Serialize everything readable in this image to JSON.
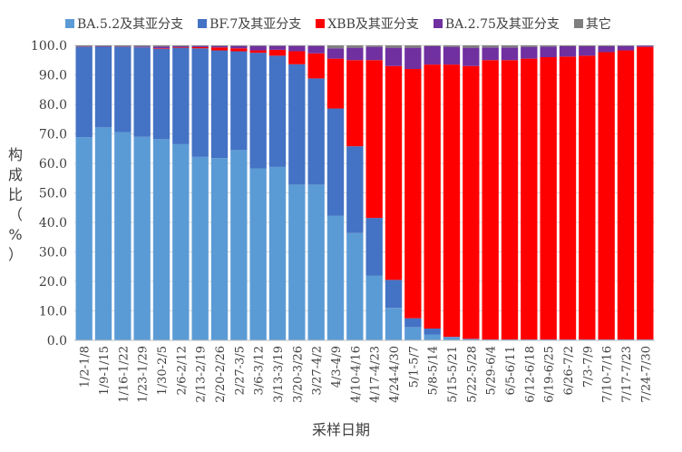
{
  "chart_data": {
    "type": "bar",
    "stacked": true,
    "categories": [
      "1/2-1/8",
      "1/9-1/15",
      "1/16-1/22",
      "1/23-1/29",
      "1/30-2/5",
      "2/6-2/12",
      "2/13-2/19",
      "2/20-2/26",
      "2/27-3/5",
      "3/6-3/12",
      "3/13-3/19",
      "3/20-3/26",
      "3/27-4/2",
      "4/3-4/9",
      "4/10-4/16",
      "4/17-4/23",
      "4/24-4/30",
      "5/1-5/7",
      "5/8-5/14",
      "5/15-5/21",
      "5/22-5/28",
      "5/29-6/4",
      "6/5-6/11",
      "6/12-6/18",
      "6/19-6/25",
      "6/26-7/2",
      "7/3-7/9",
      "7/10-7/16",
      "7/17-7/23",
      "7/24-7/30"
    ],
    "series": [
      {
        "name": "BA.5.2及其亚分支",
        "color": "#5B9BD5",
        "values": [
          68.9,
          72.2,
          70.6,
          69.0,
          68.2,
          66.5,
          62.2,
          61.8,
          64.5,
          58.3,
          58.8,
          52.8,
          52.8,
          42.3,
          36.4,
          22.0,
          11.0,
          4.5,
          2.0,
          1.0,
          0.5,
          0.3,
          0.3,
          0.3,
          0.3,
          0.3,
          0.3,
          0.3,
          0.3,
          0.3
        ]
      },
      {
        "name": "BF.7及其亚分支",
        "color": "#4472C4",
        "values": [
          30.5,
          27.3,
          28.8,
          30.3,
          30.6,
          32.7,
          36.8,
          36.5,
          33.5,
          39.2,
          37.7,
          40.8,
          36.0,
          36.3,
          29.4,
          19.5,
          9.5,
          3.0,
          2.0,
          0.2,
          0,
          0,
          0,
          0,
          0,
          0,
          0,
          0,
          0,
          0
        ]
      },
      {
        "name": "XBB及其亚分支",
        "color": "#FF0000",
        "values": [
          0.0,
          0.0,
          0.0,
          0.0,
          0.2,
          0.2,
          0.4,
          1.0,
          1.0,
          0.8,
          2.0,
          4.4,
          8.5,
          16.9,
          29.2,
          53.5,
          72.5,
          84.5,
          89.5,
          92.3,
          92.5,
          94.7,
          94.7,
          95.2,
          95.7,
          95.9,
          96.2,
          97.4,
          98.0,
          99.2
        ]
      },
      {
        "name": "BA.2.75及其亚分支",
        "color": "#7030A0",
        "values": [
          0.2,
          0.2,
          0.2,
          0.3,
          0.6,
          0.3,
          0.4,
          0.5,
          0.8,
          1.5,
          1.3,
          1.8,
          2.5,
          3.5,
          4.2,
          4.5,
          6.2,
          7.2,
          6.2,
          6.0,
          6.2,
          4.3,
          4.3,
          4.0,
          3.6,
          3.5,
          3.2,
          2.0,
          1.5,
          0.4
        ]
      },
      {
        "name": "其它",
        "color": "#7F7F7F",
        "values": [
          0.4,
          0.3,
          0.4,
          0.4,
          0.4,
          0.3,
          0.2,
          0.2,
          0.2,
          0.2,
          0.2,
          0.2,
          0.2,
          1.0,
          0.8,
          0.5,
          0.8,
          0.8,
          0.3,
          0.5,
          0.8,
          0.7,
          0.7,
          0.5,
          0.4,
          0.3,
          0.3,
          0.3,
          0.2,
          0.1
        ]
      }
    ],
    "xlabel": "采样日期",
    "ylabel": "构成比（%）",
    "ylim": [
      0,
      100
    ],
    "yticks": [
      "0.0",
      "10.0",
      "20.0",
      "30.0",
      "40.0",
      "50.0",
      "60.0",
      "70.0",
      "80.0",
      "90.0",
      "100.0"
    ],
    "grid": true,
    "legend": "top"
  }
}
